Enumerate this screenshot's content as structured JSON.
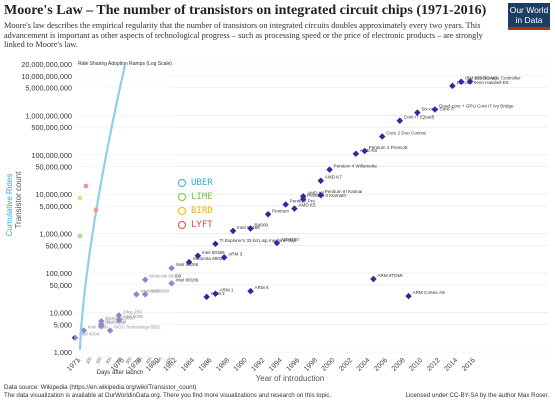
{
  "header": {
    "title": "Moore's Law – The number of transistors on integrated circuit chips (1971-2016)",
    "subtitle": "Moore's law describes the empirical regularity that the number of transistors on integrated circuits doubles approximately every two years. This advancement is important as other aspects of technological progress – such as processing speed or the price of electronic products – are strongly linked to Moore's law.",
    "logo": "Our World in Data"
  },
  "inset": {
    "title": "Ride Sharing Adoption Ramps (Log Scale)",
    "xlabel": "Days after launch",
    "ylabel": "Cumulative Rides",
    "ticks": [
      "0",
      "100",
      "150",
      "200",
      "250",
      "300",
      "350",
      "400",
      "450",
      "500"
    ]
  },
  "legend": [
    {
      "label": "UBER",
      "color": "#3aa7d8"
    },
    {
      "label": "LIME",
      "color": "#7cc242"
    },
    {
      "label": "BIRD",
      "color": "#f0b400"
    },
    {
      "label": "LYFT",
      "color": "#e0463a"
    }
  ],
  "footer": {
    "source": "Data source: Wikipedia (https://en.wikipedia.org/wiki/Transistor_count)",
    "note": "The data visualization is available at OurWorldinData.org. There you find more visualizations and research on this topic.",
    "license": "Licensed under CC-BY-SA by the author Max Roser."
  },
  "chart_data": {
    "type": "scatter",
    "ylabel": "Transistor count",
    "xlabel": "Year of introduction",
    "yscale": "log",
    "ylim": [
      1000,
      20000000000
    ],
    "xlim": [
      1971,
      2016
    ],
    "y_ticks": [
      "20,000,000,000",
      "10,000,000,000",
      "5,000,000,000",
      "1,000,000,000",
      "500,000,000",
      "100,000,000",
      "50,000,000",
      "10,000,000",
      "5,000,000",
      "1,000,000",
      "500,000",
      "100,000",
      "50,000",
      "10,000",
      "5,000",
      "1,000"
    ],
    "x_ticks": [
      "1971",
      "1976",
      "1978",
      "1980",
      "1982",
      "1984",
      "1986",
      "1988",
      "1990",
      "1992",
      "1994",
      "1996",
      "1998",
      "2000",
      "2002",
      "2004",
      "2006",
      "2008",
      "2010",
      "2012",
      "2014",
      "2016"
    ],
    "points": [
      {
        "x": 1971,
        "y": 2300,
        "label": "Intel 4004"
      },
      {
        "x": 1972,
        "y": 3500,
        "label": "Intel 8008"
      },
      {
        "x": 1974,
        "y": 4500,
        "label": "Intel 8080"
      },
      {
        "x": 1974,
        "y": 6000,
        "label": "Motorola 6800"
      },
      {
        "x": 1975,
        "y": 3510,
        "label": "MOS Technology 6502"
      },
      {
        "x": 1974,
        "y": 5000,
        "label": "RCA 1802"
      },
      {
        "x": 1976,
        "y": 6500,
        "label": "Intel 8085"
      },
      {
        "x": 1976,
        "y": 8500,
        "label": "Zilog Z80"
      },
      {
        "x": 1978,
        "y": 29000,
        "label": "Intel 8086"
      },
      {
        "x": 1979,
        "y": 29000,
        "label": "Intel 8088"
      },
      {
        "x": 1979,
        "y": 68000,
        "label": "Motorola 68000"
      },
      {
        "x": 1982,
        "y": 134000,
        "label": "Intel 80286"
      },
      {
        "x": 1982,
        "y": 55000,
        "label": "Intel 80186"
      },
      {
        "x": 1984,
        "y": 190000,
        "label": "Motorola 68020"
      },
      {
        "x": 1985,
        "y": 275000,
        "label": "Intel 80386"
      },
      {
        "x": 1986,
        "y": 25000,
        "label": "ARM 2"
      },
      {
        "x": 1987,
        "y": 30000,
        "label": "ARM 1"
      },
      {
        "x": 1987,
        "y": 550000,
        "label": "TI Explorer's 32-bit Lisp machine chip"
      },
      {
        "x": 1988,
        "y": 250000,
        "label": "ARM 3"
      },
      {
        "x": 1989,
        "y": 1180000,
        "label": "Intel 80486"
      },
      {
        "x": 1991,
        "y": 35000,
        "label": "ARM 6"
      },
      {
        "x": 1991,
        "y": 1350000,
        "label": "R4000"
      },
      {
        "x": 1993,
        "y": 3100000,
        "label": "Pentium"
      },
      {
        "x": 1995,
        "y": 5500000,
        "label": "Pentium Pro"
      },
      {
        "x": 1996,
        "y": 4300000,
        "label": "AMD K5"
      },
      {
        "x": 1997,
        "y": 7500000,
        "label": "Pentium II Klamath"
      },
      {
        "x": 1997,
        "y": 8800000,
        "label": "AMD K6"
      },
      {
        "x": 1994,
        "y": 578977,
        "label": "ARM700"
      },
      {
        "x": 1999,
        "y": 9500000,
        "label": "Pentium III Katmai"
      },
      {
        "x": 1999,
        "y": 22000000,
        "label": "AMD K7"
      },
      {
        "x": 2000,
        "y": 42000000,
        "label": "Pentium 4 Willamette"
      },
      {
        "x": 2003,
        "y": 105900000,
        "label": "AMD K8"
      },
      {
        "x": 2004,
        "y": 125000000,
        "label": "Pentium 4 Prescott"
      },
      {
        "x": 2006,
        "y": 291000000,
        "label": "Core 2 Duo Conroe"
      },
      {
        "x": 2008,
        "y": 731000000,
        "label": "Core i7 (Quad)"
      },
      {
        "x": 2010,
        "y": 1170000000,
        "label": "Six-core Core i7"
      },
      {
        "x": 2012,
        "y": 1400000000,
        "label": "Quad-core + GPU Core i7 Ivy Bridge"
      },
      {
        "x": 2014,
        "y": 5560000000,
        "label": "18-core Xeon Haswell-E5"
      },
      {
        "x": 2015,
        "y": 7100000000,
        "label": "IBM z13 Storage Controller"
      },
      {
        "x": 2016,
        "y": 7200000000,
        "label": "SPARC M7"
      },
      {
        "x": 2009,
        "y": 26000,
        "label": "ARM Cortex-A9"
      },
      {
        "x": 2005,
        "y": 71000,
        "label": "ARM 9TDMI"
      }
    ]
  }
}
